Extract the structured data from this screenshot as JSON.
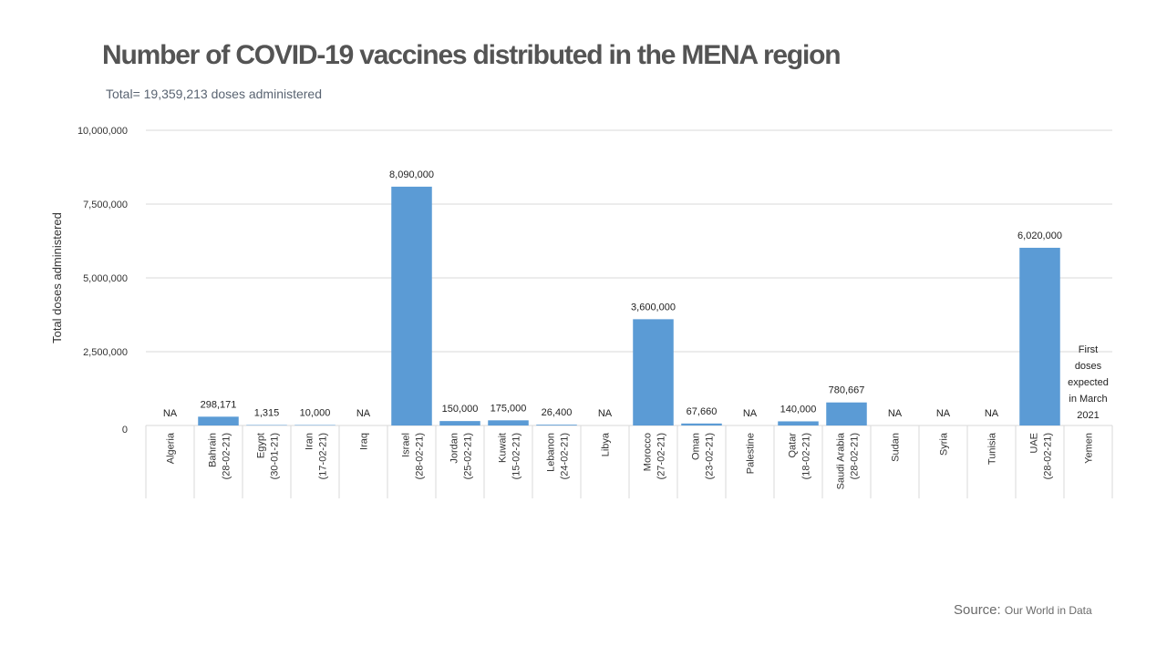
{
  "title": "Number of COVID-19 vaccines distributed in the MENA region",
  "subtitle": "Total= 19,359,213 doses administered",
  "source_label": "Source:",
  "source_name": "Our World in Data",
  "colors": {
    "bar": "#5b9bd5",
    "grid": "#d9d9d9",
    "text": "#333333"
  },
  "chart_data": {
    "type": "bar",
    "title": "Number of COVID-19 vaccines distributed in the MENA region",
    "xlabel": "",
    "ylabel": "Total doses administered",
    "ylim": [
      0,
      10000000
    ],
    "yticks": [
      "0",
      "2,500,000",
      "5,000,000",
      "7,500,000",
      "10,000,000"
    ],
    "ytick_values": [
      0,
      2500000,
      5000000,
      7500000,
      10000000
    ],
    "grid": true,
    "categories": [
      {
        "name": "Algeria",
        "date": "",
        "value": null,
        "label": "NA"
      },
      {
        "name": "Bahrain",
        "date": "(28-02-21)",
        "value": 298171,
        "label": "298,171"
      },
      {
        "name": "Egypt",
        "date": "(30-01-21)",
        "value": 1315,
        "label": "1,315"
      },
      {
        "name": "Iran",
        "date": "(17-02-21)",
        "value": 10000,
        "label": "10,000"
      },
      {
        "name": "Iraq",
        "date": "",
        "value": null,
        "label": "NA"
      },
      {
        "name": "Israel",
        "date": "(28-02-21)",
        "value": 8090000,
        "label": "8,090,000"
      },
      {
        "name": "Jordan",
        "date": "(25-02-21)",
        "value": 150000,
        "label": "150,000"
      },
      {
        "name": "Kuwait",
        "date": "(15-02-21)",
        "value": 175000,
        "label": "175,000"
      },
      {
        "name": "Lebanon",
        "date": "(24-02-21)",
        "value": 26400,
        "label": "26,400"
      },
      {
        "name": "Libya",
        "date": "",
        "value": null,
        "label": "NA"
      },
      {
        "name": "Morocco",
        "date": "(27-02-21)",
        "value": 3600000,
        "label": "3,600,000"
      },
      {
        "name": "Oman",
        "date": "(23-02-21)",
        "value": 67660,
        "label": "67,660"
      },
      {
        "name": "Palestine",
        "date": "",
        "value": null,
        "label": "NA"
      },
      {
        "name": "Qatar",
        "date": "(18-02-21)",
        "value": 140000,
        "label": "140,000"
      },
      {
        "name": "Saudi Arabia",
        "date": "(28-02-21)",
        "value": 780667,
        "label": "780,667"
      },
      {
        "name": "Sudan",
        "date": "",
        "value": null,
        "label": "NA"
      },
      {
        "name": "Syria",
        "date": "",
        "value": null,
        "label": "NA"
      },
      {
        "name": "Tunisia",
        "date": "",
        "value": null,
        "label": "NA"
      },
      {
        "name": "UAE",
        "date": "(28-02-21)",
        "value": 6020000,
        "label": "6,020,000"
      },
      {
        "name": "Yemen",
        "date": "",
        "value": null,
        "label": "First doses expected in March 2021",
        "label_lines": [
          "First",
          "doses",
          "expected",
          "in March",
          "2021"
        ]
      }
    ]
  }
}
